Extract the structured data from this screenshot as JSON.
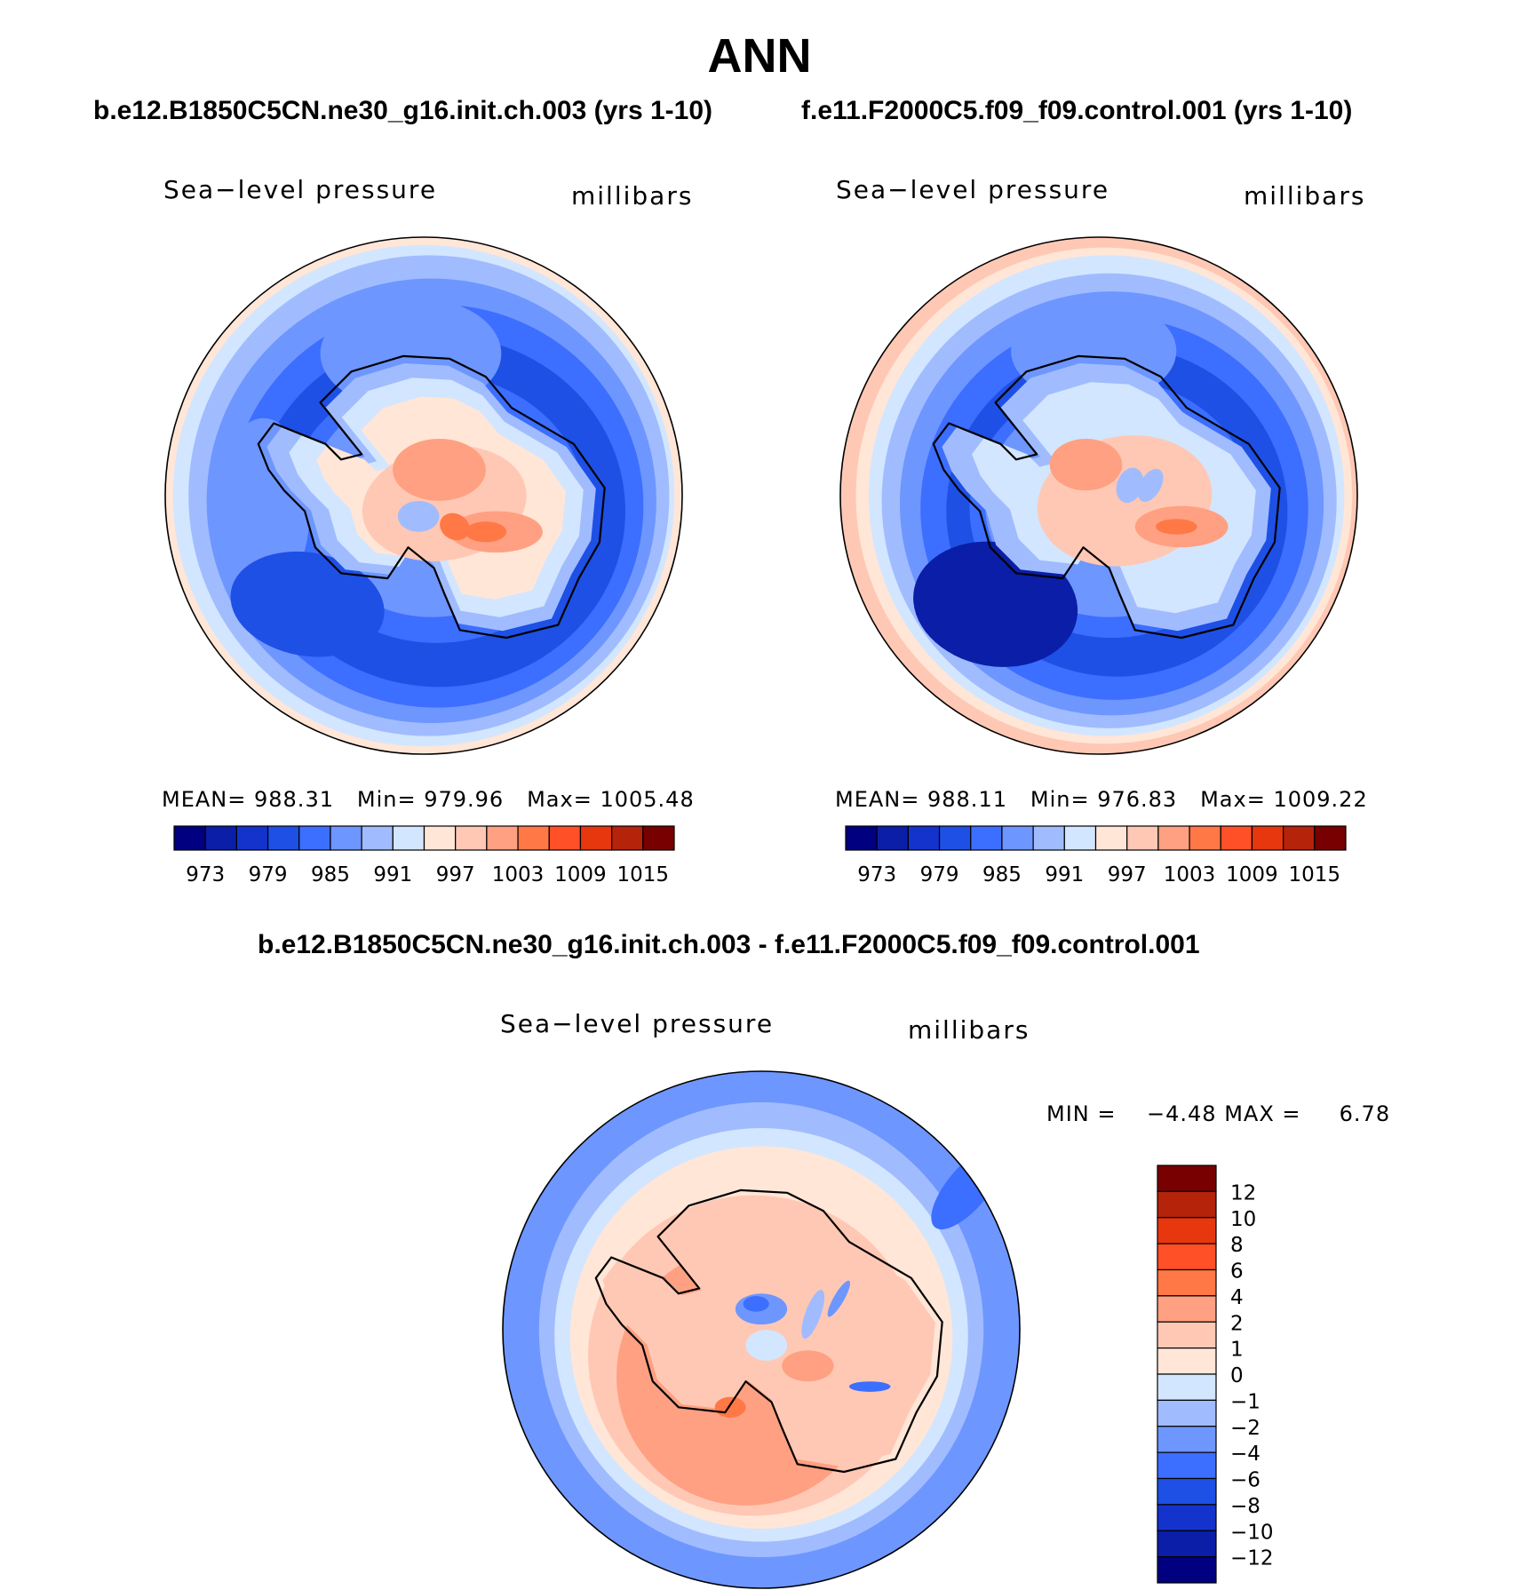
{
  "title": "ANN",
  "panels": [
    {
      "case": "b.e12.B1850C5CN.ne30_g16.init.ch.003 (yrs 1-10)",
      "variable": "Sea−level pressure",
      "units": "millibars",
      "stats": {
        "mean_label": "MEAN=",
        "mean": "988.31",
        "min_label": "Min=",
        "min": "979.96",
        "max_label": "Max=",
        "max": "1005.48"
      }
    },
    {
      "case": "f.e11.F2000C5.f09_f09.control.001 (yrs 1-10)",
      "variable": "Sea−level pressure",
      "units": "millibars",
      "stats": {
        "mean_label": "MEAN=",
        "mean": "988.11",
        "min_label": "Min=",
        "min": "976.83",
        "max_label": "Max=",
        "max": "1009.22"
      }
    }
  ],
  "diff_panel": {
    "title": "b.e12.B1850C5CN.ne30_g16.init.ch.003 - f.e11.F2000C5.f09_f09.control.001",
    "variable": "Sea−level pressure",
    "units": "millibars",
    "stats": {
      "min_label": "MIN =",
      "min": "−4.48",
      "max_label": "MAX =",
      "max": "6.78"
    }
  },
  "colorbar_horizontal": {
    "tick_labels": [
      "973",
      "979",
      "985",
      "991",
      "997",
      "1003",
      "1009",
      "1015"
    ],
    "colors": [
      "#000080",
      "#0a1ea8",
      "#1433cc",
      "#1e50e6",
      "#3c6eff",
      "#6e96ff",
      "#a0bcff",
      "#d2e6ff",
      "#ffe6d7",
      "#ffc8b4",
      "#ffa082",
      "#ff7846",
      "#ff5028",
      "#e6370f",
      "#b4230a",
      "#780000"
    ]
  },
  "colorbar_vertical": {
    "tick_labels": [
      "12",
      "10",
      "8",
      "6",
      "4",
      "2",
      "1",
      "0",
      "−1",
      "−2",
      "−4",
      "−6",
      "−8",
      "−10",
      "−12"
    ],
    "colors": [
      "#780000",
      "#b4230a",
      "#e6370f",
      "#ff5028",
      "#ff7846",
      "#ffa082",
      "#ffc8b4",
      "#ffe6d7",
      "#d2e6ff",
      "#a0bcff",
      "#6e96ff",
      "#3c6eff",
      "#1e50e6",
      "#1433cc",
      "#0a1ea8",
      "#000080"
    ]
  },
  "map_colors": {
    "b5": "#0a1ea8",
    "b4": "#1e50e6",
    "b3": "#3c6eff",
    "b2": "#6e96ff",
    "b1": "#a0bcff",
    "b0": "#d2e6ff",
    "r0": "#ffe6d7",
    "r1": "#ffc8b4",
    "r2": "#ffa082",
    "r3": "#ff7846",
    "r4": "#ff5028"
  }
}
